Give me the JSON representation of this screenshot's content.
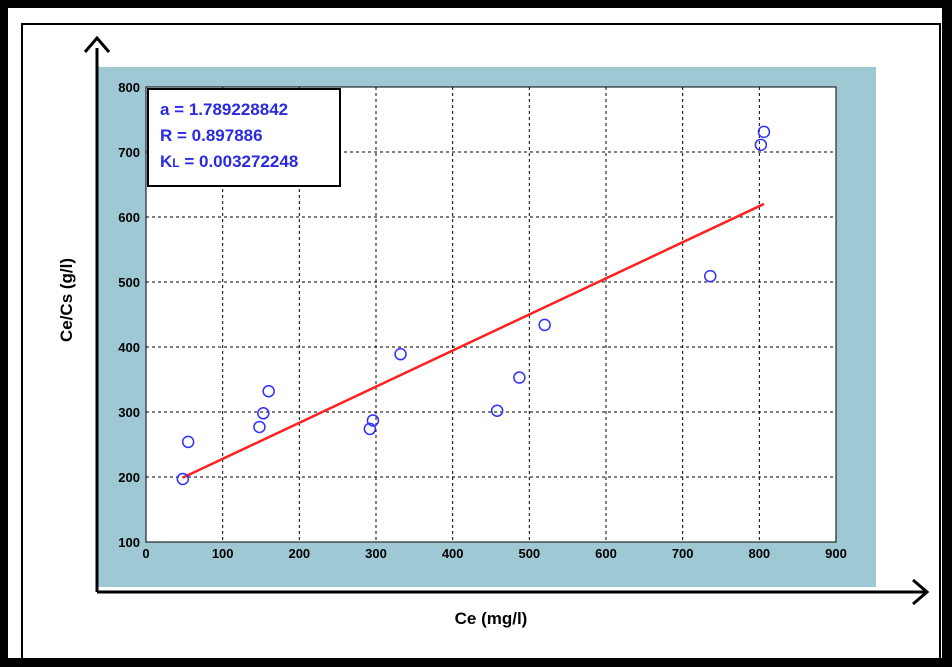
{
  "chart_data": {
    "type": "scatter",
    "xlabel": "Ce (mg/l)",
    "ylabel": "Ce/Cs (g/l)",
    "xlim": [
      0,
      900
    ],
    "ylim": [
      100,
      800
    ],
    "xticks": [
      0,
      100,
      200,
      300,
      400,
      500,
      600,
      700,
      800,
      900
    ],
    "yticks": [
      100,
      200,
      300,
      400,
      500,
      600,
      700,
      800
    ],
    "grid": true,
    "points": [
      {
        "x": 48,
        "y": 197
      },
      {
        "x": 55,
        "y": 254
      },
      {
        "x": 148,
        "y": 277
      },
      {
        "x": 153,
        "y": 298
      },
      {
        "x": 160,
        "y": 332
      },
      {
        "x": 292,
        "y": 274
      },
      {
        "x": 296,
        "y": 287
      },
      {
        "x": 332,
        "y": 389
      },
      {
        "x": 458,
        "y": 302
      },
      {
        "x": 487,
        "y": 353
      },
      {
        "x": 520,
        "y": 434
      },
      {
        "x": 736,
        "y": 509
      },
      {
        "x": 802,
        "y": 711
      },
      {
        "x": 806,
        "y": 731
      }
    ],
    "fit_line": {
      "x": [
        48,
        806
      ],
      "y": [
        199,
        620
      ],
      "color": "#ff2020"
    },
    "point_color": "#3030ff",
    "plot_background": "#9ec9d4",
    "annotation": {
      "a": "a = 1.789228842",
      "r": "R = 0.897886",
      "kl_prefix": "K",
      "kl_sub": "L",
      "kl_value": " = 0.003272248"
    }
  }
}
